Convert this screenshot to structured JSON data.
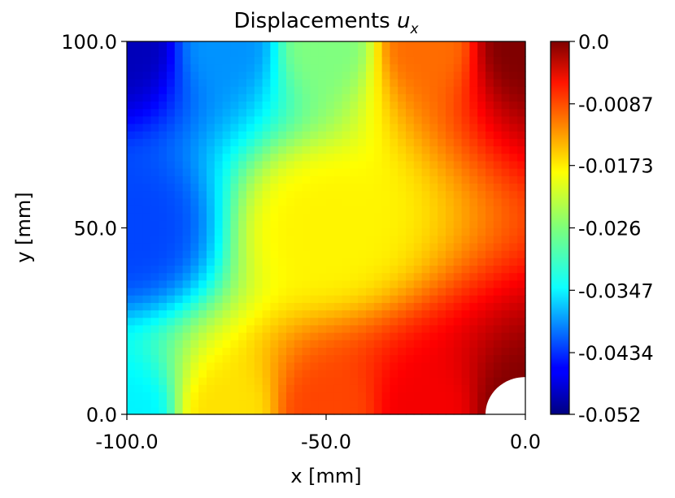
{
  "chart_data": {
    "type": "heatmap",
    "title": "Displacements",
    "title_symbol": "u",
    "title_subscript": "x",
    "xlabel": "x [mm]",
    "ylabel": "y [mm]",
    "xlim": [
      -100.0,
      0.0
    ],
    "ylim": [
      0.0,
      100.0
    ],
    "x_ticks": [
      "-100.0",
      "-50.0",
      "0.0"
    ],
    "y_ticks": [
      "0.0",
      "50.0",
      "100.0"
    ],
    "x_tick_values": [
      -100,
      -50,
      0
    ],
    "y_tick_values": [
      0,
      50,
      100
    ],
    "colormap": "jet",
    "colorbar": {
      "vmin": -0.052,
      "vmax": 0.0,
      "ticks": [
        "0.0",
        "-0.0087",
        "-0.0173",
        "-0.026",
        "-0.0347",
        "-0.0434",
        "-0.052"
      ],
      "tick_values": [
        0.0,
        -0.0087,
        -0.0173,
        -0.026,
        -0.0347,
        -0.0434,
        -0.052
      ]
    },
    "hole": {
      "center_x": 0,
      "center_y": 0,
      "radius": 10
    },
    "field_samples": [
      {
        "x": -100,
        "y": 100,
        "value": -0.049
      },
      {
        "x": -100,
        "y": 50,
        "value": -0.042
      },
      {
        "x": -100,
        "y": 0,
        "value": -0.033
      },
      {
        "x": -75,
        "y": 100,
        "value": -0.038
      },
      {
        "x": -75,
        "y": 0,
        "value": -0.018
      },
      {
        "x": -50,
        "y": 100,
        "value": -0.026
      },
      {
        "x": -50,
        "y": 50,
        "value": -0.019
      },
      {
        "x": -50,
        "y": 0,
        "value": -0.01
      },
      {
        "x": -25,
        "y": 100,
        "value": -0.012
      },
      {
        "x": -25,
        "y": 0,
        "value": -0.006
      },
      {
        "x": 0,
        "y": 100,
        "value": 0.0
      },
      {
        "x": 0,
        "y": 0,
        "value": 0.0
      }
    ]
  }
}
